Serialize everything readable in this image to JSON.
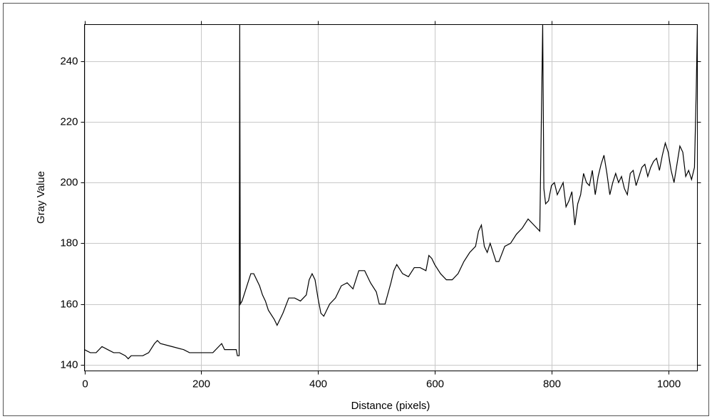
{
  "chart_data": {
    "type": "line",
    "x_label": "Distance (pixels)",
    "y_label": "Gray Value",
    "x": [
      0,
      10,
      20,
      30,
      40,
      50,
      60,
      70,
      75,
      80,
      100,
      110,
      120,
      125,
      130,
      150,
      170,
      180,
      200,
      220,
      230,
      235,
      240,
      260,
      262,
      265,
      266,
      267,
      270,
      275,
      280,
      285,
      290,
      300,
      305,
      310,
      315,
      325,
      330,
      340,
      350,
      360,
      370,
      380,
      385,
      390,
      395,
      400,
      405,
      410,
      420,
      430,
      440,
      450,
      460,
      465,
      470,
      480,
      490,
      500,
      505,
      515,
      525,
      530,
      535,
      545,
      555,
      565,
      575,
      585,
      590,
      595,
      600,
      610,
      620,
      630,
      640,
      650,
      660,
      670,
      675,
      680,
      685,
      690,
      695,
      705,
      710,
      720,
      730,
      740,
      750,
      760,
      770,
      780,
      785,
      787,
      790,
      795,
      800,
      805,
      810,
      815,
      820,
      825,
      830,
      835,
      840,
      845,
      850,
      855,
      860,
      865,
      870,
      875,
      880,
      885,
      890,
      895,
      900,
      905,
      910,
      915,
      920,
      925,
      930,
      935,
      940,
      945,
      950,
      955,
      960,
      965,
      970,
      975,
      980,
      985,
      990,
      995,
      1000,
      1005,
      1010,
      1015,
      1020,
      1025,
      1030,
      1035,
      1040,
      1045,
      1048,
      1050
    ],
    "values": [
      145,
      144,
      144,
      146,
      145,
      144,
      144,
      143,
      142,
      143,
      143,
      144,
      147,
      148,
      147,
      146,
      145,
      144,
      144,
      144,
      146,
      147,
      145,
      145,
      143,
      143,
      252,
      160,
      161,
      164,
      167,
      170,
      170,
      166,
      163,
      161,
      158,
      155,
      153,
      157,
      162,
      162,
      161,
      163,
      168,
      170,
      168,
      162,
      157,
      156,
      160,
      162,
      166,
      167,
      165,
      168,
      171,
      171,
      167,
      164,
      160,
      160,
      167,
      171,
      173,
      170,
      169,
      172,
      172,
      171,
      176,
      175,
      173,
      170,
      168,
      168,
      170,
      174,
      177,
      179,
      184,
      186,
      179,
      177,
      180,
      174,
      174,
      179,
      180,
      183,
      185,
      188,
      186,
      184,
      252,
      198,
      193,
      194,
      199,
      200,
      196,
      198,
      200,
      192,
      194,
      197,
      186,
      193,
      196,
      203,
      200,
      199,
      204,
      196,
      202,
      206,
      209,
      203,
      196,
      200,
      203,
      200,
      202,
      198,
      196,
      203,
      204,
      199,
      202,
      205,
      206,
      202,
      205,
      207,
      208,
      204,
      209,
      213,
      210,
      204,
      200,
      206,
      212,
      210,
      202,
      204,
      201,
      205,
      230,
      252
    ],
    "color": "#000000",
    "xlim": [
      0,
      1050
    ],
    "xticks": [
      0,
      200,
      400,
      600,
      800,
      1000
    ],
    "ylim": [
      138,
      252
    ],
    "yticks": [
      140,
      160,
      180,
      200,
      220,
      240
    ],
    "grid": true
  }
}
